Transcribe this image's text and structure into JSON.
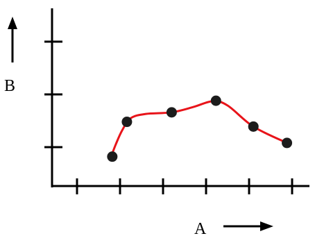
{
  "chart_data": {
    "type": "scatter",
    "title": "",
    "xlabel": "A",
    "ylabel": "B",
    "grid": false,
    "legend": "none",
    "xlim": [
      0,
      7
    ],
    "ylim": [
      0,
      4
    ],
    "x_ticks": [
      1,
      2,
      3,
      4,
      5,
      6
    ],
    "y_ticks": [
      1,
      2,
      3
    ],
    "tick_labels_shown": false,
    "points": [
      {
        "x": 1.82,
        "y": 0.82
      },
      {
        "x": 2.16,
        "y": 1.48
      },
      {
        "x": 3.2,
        "y": 1.66
      },
      {
        "x": 4.23,
        "y": 1.88
      },
      {
        "x": 5.1,
        "y": 1.39
      },
      {
        "x": 5.88,
        "y": 1.08
      }
    ],
    "fit_curve": [
      {
        "x": 1.76,
        "y": 0.75
      },
      {
        "x": 1.9,
        "y": 1.05
      },
      {
        "x": 2.05,
        "y": 1.32
      },
      {
        "x": 2.25,
        "y": 1.55
      },
      {
        "x": 2.6,
        "y": 1.63
      },
      {
        "x": 3.2,
        "y": 1.66
      },
      {
        "x": 3.7,
        "y": 1.76
      },
      {
        "x": 4.15,
        "y": 1.87
      },
      {
        "x": 4.5,
        "y": 1.79
      },
      {
        "x": 5.1,
        "y": 1.39
      },
      {
        "x": 5.88,
        "y": 1.08
      }
    ],
    "colors": {
      "points": "#1c1c1c",
      "curve": "#e8141a",
      "axes": "#000000"
    }
  }
}
